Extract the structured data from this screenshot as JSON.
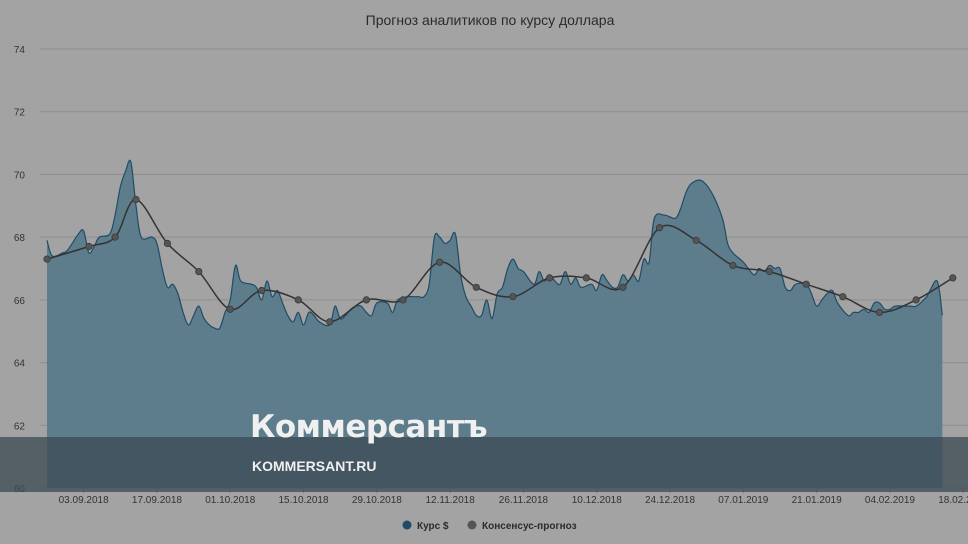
{
  "chart_data": {
    "type": "area",
    "title": "Прогноз аналитиков по курсу доллара",
    "xlabel": "",
    "ylabel": "",
    "ylim": [
      60,
      74
    ],
    "yticks": [
      60,
      62,
      64,
      66,
      68,
      70,
      72,
      74
    ],
    "x_tick_labels": [
      "03.09.2018",
      "17.09.2018",
      "01.10.2018",
      "15.10.2018",
      "29.10.2018",
      "12.11.2018",
      "26.11.2018",
      "10.12.2018",
      "24.12.2018",
      "07.01.2019",
      "21.01.2019",
      "04.02.2019",
      "18.02.2019"
    ],
    "grid": true,
    "legend_position": "bottom",
    "colors": {
      "area_fill": "#5a7b8c",
      "area_line": "#1f4c66",
      "consensus_line": "#333333",
      "consensus_marker": "#555555"
    },
    "series": [
      {
        "name": "Курс $",
        "type": "area",
        "points": [
          [
            "2018-08-27",
            67.9
          ],
          [
            "2018-08-28",
            67.4
          ],
          [
            "2018-08-30",
            67.5
          ],
          [
            "2018-08-31",
            67.6
          ],
          [
            "2018-09-02",
            68.1
          ],
          [
            "2018-09-03",
            68.2
          ],
          [
            "2018-09-04",
            67.5
          ],
          [
            "2018-09-05",
            67.7
          ],
          [
            "2018-09-06",
            68.0
          ],
          [
            "2018-09-08",
            68.1
          ],
          [
            "2018-09-09",
            68.7
          ],
          [
            "2018-09-10",
            69.6
          ],
          [
            "2018-09-11",
            70.1
          ],
          [
            "2018-09-12",
            70.4
          ],
          [
            "2018-09-13",
            69.0
          ],
          [
            "2018-09-14",
            68.0
          ],
          [
            "2018-09-16",
            68.0
          ],
          [
            "2018-09-17",
            67.8
          ],
          [
            "2018-09-18",
            67.0
          ],
          [
            "2018-09-19",
            66.4
          ],
          [
            "2018-09-20",
            66.5
          ],
          [
            "2018-09-21",
            66.2
          ],
          [
            "2018-09-22",
            65.6
          ],
          [
            "2018-09-23",
            65.2
          ],
          [
            "2018-09-24",
            65.5
          ],
          [
            "2018-09-25",
            65.8
          ],
          [
            "2018-09-26",
            65.4
          ],
          [
            "2018-09-27",
            65.2
          ],
          [
            "2018-09-28",
            65.1
          ],
          [
            "2018-09-29",
            65.1
          ],
          [
            "2018-09-30",
            65.6
          ],
          [
            "2018-10-01",
            66.0
          ],
          [
            "2018-10-02",
            67.1
          ],
          [
            "2018-10-03",
            66.6
          ],
          [
            "2018-10-05",
            66.5
          ],
          [
            "2018-10-06",
            66.4
          ],
          [
            "2018-10-07",
            66.0
          ],
          [
            "2018-10-08",
            66.6
          ],
          [
            "2018-10-09",
            66.1
          ],
          [
            "2018-10-10",
            66.3
          ],
          [
            "2018-10-11",
            65.9
          ],
          [
            "2018-10-12",
            65.5
          ],
          [
            "2018-10-13",
            65.3
          ],
          [
            "2018-10-14",
            65.6
          ],
          [
            "2018-10-15",
            65.2
          ],
          [
            "2018-10-16",
            65.6
          ],
          [
            "2018-10-17",
            65.5
          ],
          [
            "2018-10-18",
            65.3
          ],
          [
            "2018-10-20",
            65.2
          ],
          [
            "2018-10-21",
            65.8
          ],
          [
            "2018-10-22",
            65.4
          ],
          [
            "2018-10-23",
            65.5
          ],
          [
            "2018-10-24",
            65.7
          ],
          [
            "2018-10-25",
            65.8
          ],
          [
            "2018-10-26",
            65.8
          ],
          [
            "2018-10-27",
            65.6
          ],
          [
            "2018-10-28",
            65.5
          ],
          [
            "2018-10-29",
            65.9
          ],
          [
            "2018-10-31",
            65.9
          ],
          [
            "2018-11-01",
            65.6
          ],
          [
            "2018-11-02",
            66.0
          ],
          [
            "2018-11-04",
            66.1
          ],
          [
            "2018-11-05",
            66.1
          ],
          [
            "2018-11-06",
            66.1
          ],
          [
            "2018-11-07",
            66.1
          ],
          [
            "2018-11-08",
            66.5
          ],
          [
            "2018-11-09",
            68.0
          ],
          [
            "2018-11-10",
            68.0
          ],
          [
            "2018-11-11",
            67.8
          ],
          [
            "2018-11-12",
            67.9
          ],
          [
            "2018-11-13",
            68.1
          ],
          [
            "2018-11-14",
            66.8
          ],
          [
            "2018-11-15",
            66.1
          ],
          [
            "2018-11-16",
            65.8
          ],
          [
            "2018-11-17",
            65.5
          ],
          [
            "2018-11-18",
            65.5
          ],
          [
            "2018-11-19",
            66.0
          ],
          [
            "2018-11-20",
            65.4
          ],
          [
            "2018-11-21",
            66.2
          ],
          [
            "2018-11-22",
            66.4
          ],
          [
            "2018-11-23",
            67.0
          ],
          [
            "2018-11-24",
            67.3
          ],
          [
            "2018-11-25",
            67.0
          ],
          [
            "2018-11-26",
            66.9
          ],
          [
            "2018-11-28",
            66.5
          ],
          [
            "2018-11-29",
            66.9
          ],
          [
            "2018-11-30",
            66.6
          ],
          [
            "2018-12-01",
            66.8
          ],
          [
            "2018-12-02",
            66.6
          ],
          [
            "2018-12-03",
            66.5
          ],
          [
            "2018-12-04",
            66.9
          ],
          [
            "2018-12-05",
            66.5
          ],
          [
            "2018-12-06",
            66.7
          ],
          [
            "2018-12-07",
            66.4
          ],
          [
            "2018-12-09",
            66.5
          ],
          [
            "2018-12-10",
            66.3
          ],
          [
            "2018-12-11",
            66.8
          ],
          [
            "2018-12-12",
            66.6
          ],
          [
            "2018-12-13",
            66.4
          ],
          [
            "2018-12-14",
            66.4
          ],
          [
            "2018-12-15",
            66.8
          ],
          [
            "2018-12-16",
            66.6
          ],
          [
            "2018-12-17",
            66.8
          ],
          [
            "2018-12-18",
            66.6
          ],
          [
            "2018-12-19",
            67.3
          ],
          [
            "2018-12-20",
            67.2
          ],
          [
            "2018-12-21",
            68.6
          ],
          [
            "2018-12-23",
            68.7
          ],
          [
            "2018-12-25",
            68.6
          ],
          [
            "2018-12-26",
            68.9
          ],
          [
            "2018-12-27",
            69.4
          ],
          [
            "2018-12-28",
            69.7
          ],
          [
            "2018-12-30",
            69.8
          ],
          [
            "2019-01-01",
            69.4
          ],
          [
            "2019-01-03",
            68.6
          ],
          [
            "2019-01-04",
            67.8
          ],
          [
            "2019-01-05",
            67.5
          ],
          [
            "2019-01-07",
            67.2
          ],
          [
            "2019-01-09",
            66.8
          ],
          [
            "2019-01-10",
            67.0
          ],
          [
            "2019-01-11",
            66.9
          ],
          [
            "2019-01-12",
            67.1
          ],
          [
            "2019-01-13",
            67.0
          ],
          [
            "2019-01-14",
            67.0
          ],
          [
            "2019-01-15",
            66.4
          ],
          [
            "2019-01-16",
            66.3
          ],
          [
            "2019-01-17",
            66.5
          ],
          [
            "2019-01-19",
            66.5
          ],
          [
            "2019-01-20",
            66.2
          ],
          [
            "2019-01-21",
            65.8
          ],
          [
            "2019-01-22",
            66.0
          ],
          [
            "2019-01-23",
            66.2
          ],
          [
            "2019-01-24",
            66.3
          ],
          [
            "2019-01-25",
            65.9
          ],
          [
            "2019-01-27",
            65.5
          ],
          [
            "2019-01-28",
            65.6
          ],
          [
            "2019-01-29",
            65.6
          ],
          [
            "2019-01-30",
            65.7
          ],
          [
            "2019-01-31",
            65.6
          ],
          [
            "2019-02-01",
            65.9
          ],
          [
            "2019-02-02",
            65.9
          ],
          [
            "2019-02-03",
            65.7
          ],
          [
            "2019-02-04",
            65.7
          ],
          [
            "2019-02-05",
            65.8
          ],
          [
            "2019-02-07",
            65.8
          ],
          [
            "2019-02-08",
            65.8
          ],
          [
            "2019-02-09",
            65.8
          ],
          [
            "2019-02-11",
            66.1
          ],
          [
            "2019-02-13",
            66.6
          ],
          [
            "2019-02-14",
            65.5
          ]
        ]
      },
      {
        "name": "Консенсус-прогноз",
        "type": "line",
        "points": [
          [
            "2018-08-27",
            67.3
          ],
          [
            "2018-09-04",
            67.7
          ],
          [
            "2018-09-09",
            68.0
          ],
          [
            "2018-09-13",
            69.2
          ],
          [
            "2018-09-19",
            67.8
          ],
          [
            "2018-09-25",
            66.9
          ],
          [
            "2018-10-01",
            65.7
          ],
          [
            "2018-10-07",
            66.3
          ],
          [
            "2018-10-14",
            66.0
          ],
          [
            "2018-10-20",
            65.3
          ],
          [
            "2018-10-27",
            66.0
          ],
          [
            "2018-11-03",
            66.0
          ],
          [
            "2018-11-10",
            67.2
          ],
          [
            "2018-11-17",
            66.4
          ],
          [
            "2018-11-24",
            66.1
          ],
          [
            "2018-12-01",
            66.7
          ],
          [
            "2018-12-08",
            66.7
          ],
          [
            "2018-12-15",
            66.4
          ],
          [
            "2018-12-22",
            68.3
          ],
          [
            "2018-12-29",
            67.9
          ],
          [
            "2019-01-05",
            67.1
          ],
          [
            "2019-01-12",
            66.9
          ],
          [
            "2019-01-19",
            66.5
          ],
          [
            "2019-01-26",
            66.1
          ],
          [
            "2019-02-02",
            65.6
          ],
          [
            "2019-02-09",
            66.0
          ],
          [
            "2019-02-16",
            66.7
          ]
        ]
      }
    ]
  },
  "watermark": {
    "logo": "Коммерсантъ",
    "url": "KOMMERSANT.RU"
  }
}
